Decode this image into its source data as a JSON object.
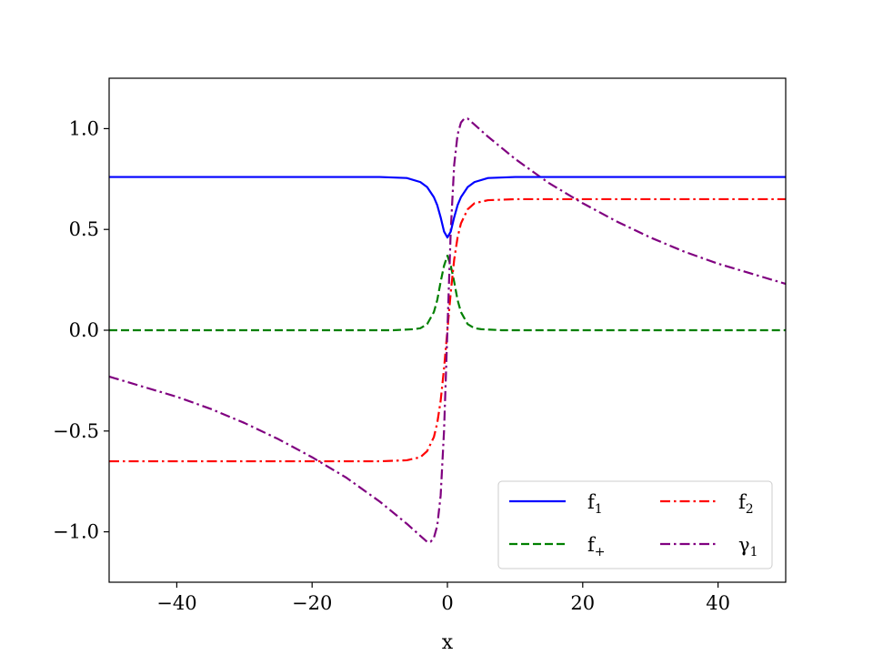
{
  "chart_data": {
    "type": "line",
    "xlabel": "x",
    "ylabel": "",
    "xlim": [
      -50,
      50
    ],
    "ylim": [
      -1.25,
      1.25
    ],
    "xticks": [
      -40,
      -20,
      0,
      20,
      40
    ],
    "xtick_labels": [
      "−40",
      "−20",
      "0",
      "20",
      "40"
    ],
    "yticks": [
      -1.0,
      -0.5,
      0.0,
      0.5,
      1.0
    ],
    "ytick_labels": [
      "−1.0",
      "−0.5",
      "0.0",
      "0.5",
      "1.0"
    ],
    "grid": false,
    "legend_position": "lower-right",
    "series": [
      {
        "name": "f₁",
        "name_base": "f",
        "name_sub": "1",
        "color": "#0000ff",
        "style": "solid",
        "x": [
          -50,
          -10,
          -6,
          -4,
          -3,
          -2,
          -1.5,
          -1,
          -0.5,
          0,
          0.5,
          1,
          1.5,
          2,
          3,
          4,
          6,
          10,
          50
        ],
        "y": [
          0.76,
          0.76,
          0.755,
          0.735,
          0.71,
          0.66,
          0.62,
          0.56,
          0.49,
          0.46,
          0.49,
          0.56,
          0.62,
          0.66,
          0.71,
          0.735,
          0.755,
          0.76,
          0.76
        ]
      },
      {
        "name": "f₂",
        "name_base": "f",
        "name_sub": "2",
        "color": "#ff0000",
        "style": "dashdot",
        "x": [
          -50,
          -10,
          -6,
          -4,
          -3,
          -2,
          -1.5,
          -1,
          -0.5,
          0,
          0.5,
          1,
          1.5,
          2,
          3,
          4,
          6,
          10,
          50
        ],
        "y": [
          -0.65,
          -0.65,
          -0.645,
          -0.63,
          -0.6,
          -0.53,
          -0.46,
          -0.35,
          -0.19,
          0.0,
          0.19,
          0.35,
          0.46,
          0.53,
          0.6,
          0.63,
          0.645,
          0.65,
          0.65
        ]
      },
      {
        "name": "f₊",
        "name_base": "f",
        "name_sub": "+",
        "color": "#008000",
        "style": "dashed",
        "x": [
          -50,
          -8,
          -5,
          -4,
          -3,
          -2,
          -1.5,
          -1,
          -0.5,
          0,
          0.5,
          1,
          1.5,
          2,
          3,
          4,
          5,
          8,
          50
        ],
        "y": [
          0.0,
          0.0,
          0.005,
          0.01,
          0.03,
          0.09,
          0.15,
          0.24,
          0.32,
          0.37,
          0.32,
          0.24,
          0.15,
          0.09,
          0.03,
          0.01,
          0.005,
          0.0,
          0.0
        ]
      },
      {
        "name": "γ₁",
        "name_base": "γ",
        "name_sub": "1",
        "color": "#800080",
        "style": "dashdot",
        "x": [
          -50,
          -45,
          -40,
          -35,
          -30,
          -25,
          -20,
          -15,
          -10,
          -6,
          -4,
          -3,
          -2.5,
          -2,
          -1.5,
          -1,
          -0.5,
          0,
          0.5,
          1,
          1.5,
          2,
          2.5,
          3,
          4,
          6,
          10,
          15,
          20,
          25,
          30,
          35,
          40,
          45,
          50
        ],
        "y": [
          -0.23,
          -0.28,
          -0.33,
          -0.39,
          -0.46,
          -0.54,
          -0.63,
          -0.73,
          -0.85,
          -0.96,
          -1.02,
          -1.05,
          -1.05,
          -1.03,
          -0.97,
          -0.82,
          -0.5,
          0.0,
          0.5,
          0.82,
          0.97,
          1.03,
          1.05,
          1.05,
          1.02,
          0.96,
          0.85,
          0.73,
          0.63,
          0.54,
          0.46,
          0.39,
          0.33,
          0.28,
          0.23
        ]
      }
    ]
  }
}
